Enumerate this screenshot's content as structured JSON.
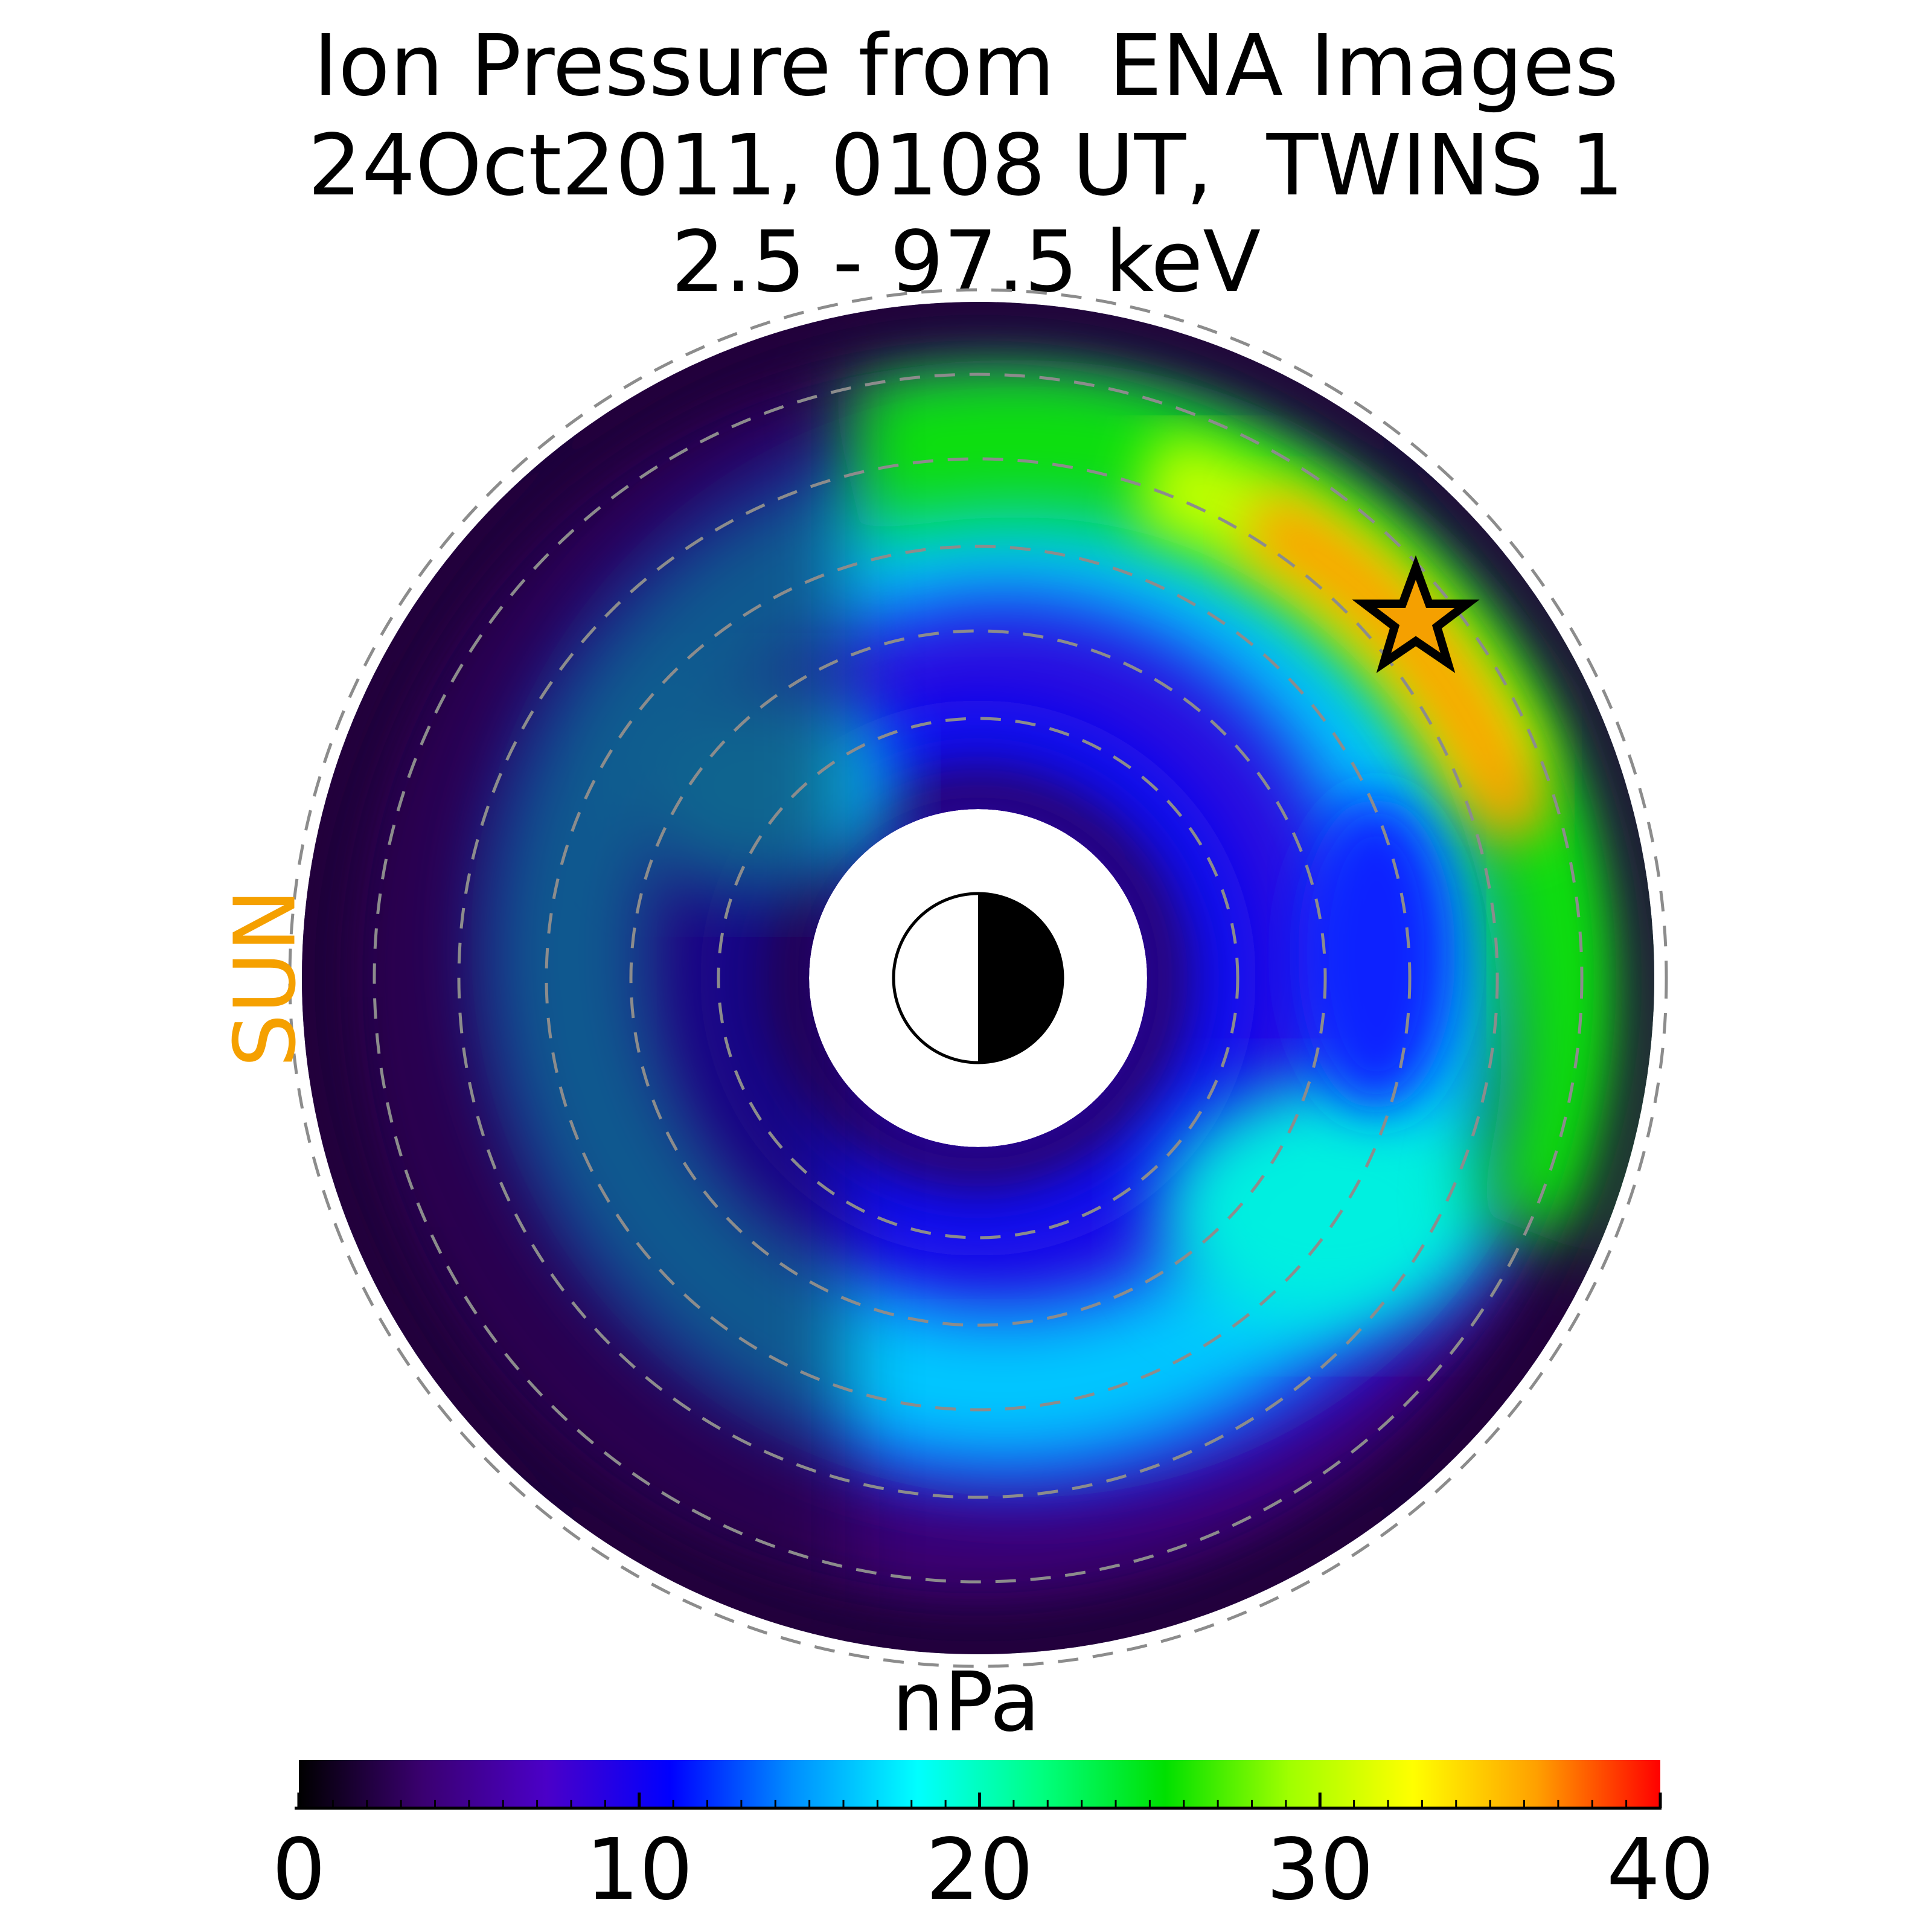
{
  "title": {
    "line1": "Ion Pressure from  ENA Images",
    "line2": "24Oct2011, 0108 UT,  TWINS 1",
    "line3": "2.5 - 97.5 keV"
  },
  "sun_label": "SUN",
  "colors": {
    "sun_label": "#f5a000",
    "star_fill": "#f5a000",
    "grid_circle": "#8c8c8c"
  },
  "chart_data": {
    "type": "heatmap",
    "projection": "polar equatorial pressure map (sun to the left)",
    "colorbar": {
      "label": "nPa",
      "min": 0,
      "max": 40,
      "ticks": [
        0,
        10,
        20,
        30,
        40
      ],
      "tick_labels": [
        "0",
        "10",
        "20",
        "30",
        "40"
      ],
      "colormap": [
        "#000000",
        "#3a0070",
        "#4b00c8",
        "#0000ff",
        "#0090ff",
        "#00ffff",
        "#00ff80",
        "#00e000",
        "#a0ff00",
        "#ffff00",
        "#ffa000",
        "#ff0000"
      ]
    },
    "peak_value_approx": 32,
    "peak_location": "dusk-to-midnight sector (upper right), outer ring",
    "marker": "star at spacecraft/peak position",
    "earth_symbol": "day/night Earth disk at center"
  }
}
